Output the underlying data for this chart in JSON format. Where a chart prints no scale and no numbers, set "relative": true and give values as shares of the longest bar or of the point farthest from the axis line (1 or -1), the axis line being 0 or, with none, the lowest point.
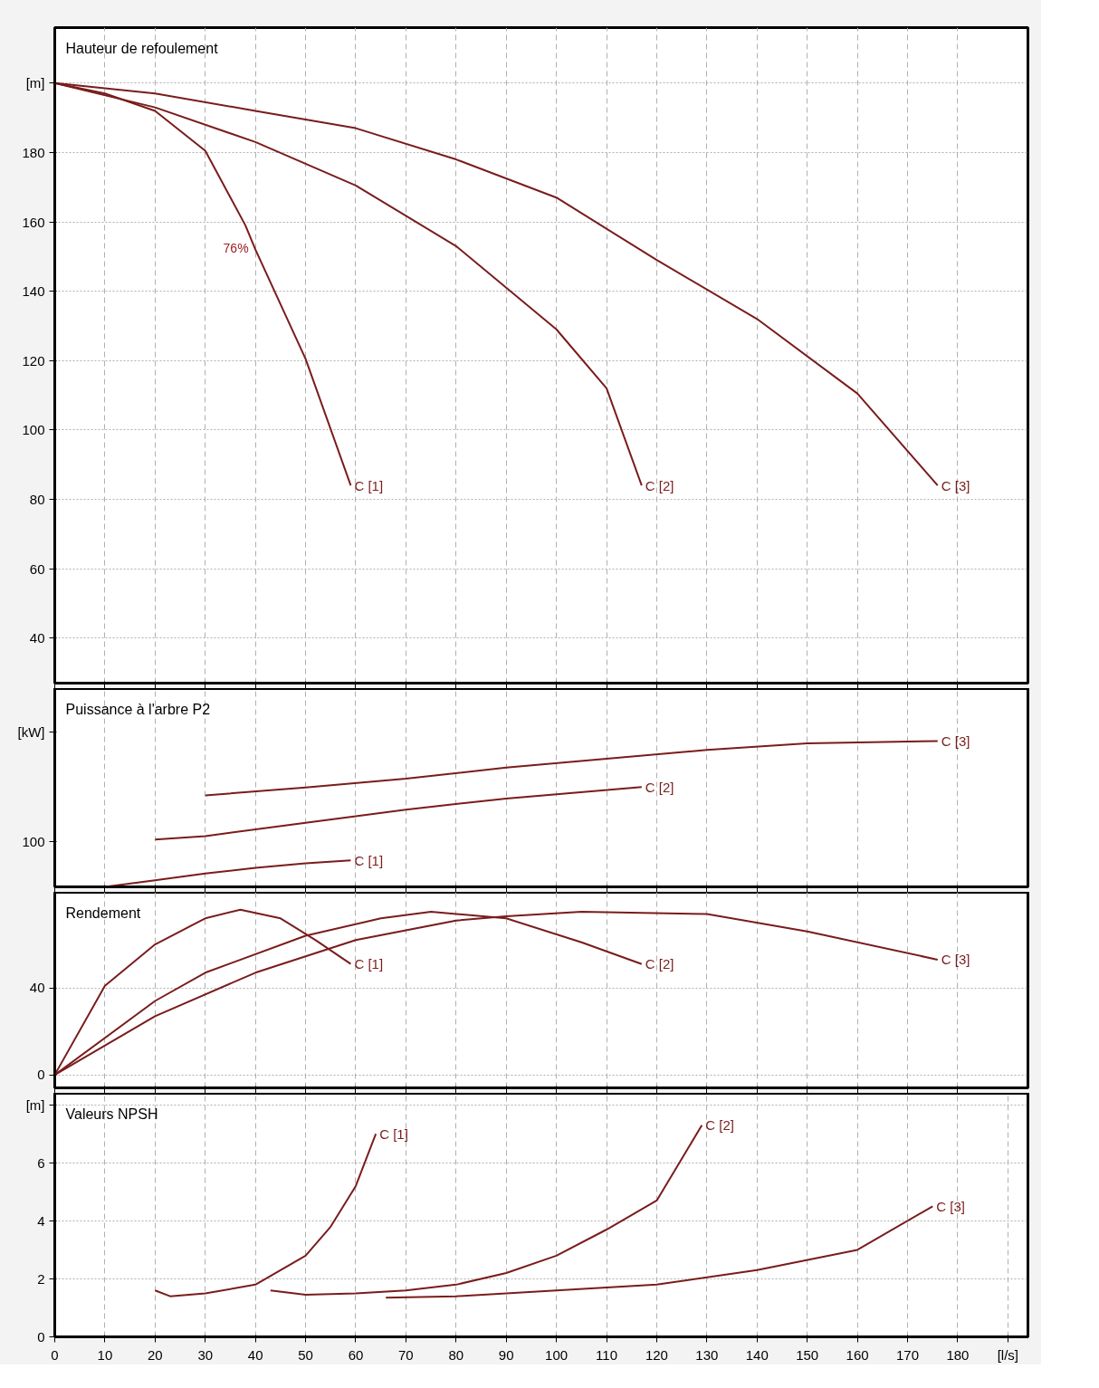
{
  "chart_data": [
    {
      "type": "line",
      "title": "Hauteur de refoulement",
      "xlim": [
        0,
        194
      ],
      "ylim": [
        27,
        216
      ],
      "xticks": [
        0,
        10,
        20,
        30,
        40,
        50,
        60,
        70,
        80,
        90,
        100,
        110,
        120,
        130,
        140,
        150,
        160,
        170,
        180
      ],
      "yticks": [
        40,
        60,
        80,
        100,
        120,
        140,
        160,
        180,
        {
          "value": 200,
          "label": "[m]"
        }
      ],
      "grid": true,
      "tick_labels": "y",
      "line_style": "solid",
      "annotations": [
        {
          "text": "76%",
          "x": 39,
          "y": 155.5
        }
      ],
      "series": [
        {
          "name": "C [1]",
          "color": "#7a1c1c",
          "x": [
            0,
            10,
            20,
            30,
            38,
            40,
            50,
            59
          ],
          "values": [
            200,
            197,
            192,
            180.5,
            159,
            152,
            120.5,
            84
          ]
        },
        {
          "name": "C [2]",
          "color": "#7a1c1c",
          "x": [
            0,
            20,
            40,
            60,
            80,
            100,
            110,
            117
          ],
          "values": [
            200,
            193,
            183,
            170.5,
            153,
            129,
            112,
            84
          ]
        },
        {
          "name": "C [3]",
          "color": "#7a1c1c",
          "x": [
            0,
            20,
            40,
            60,
            80,
            100,
            120,
            140,
            160,
            176
          ],
          "values": [
            200,
            197,
            192,
            187,
            178,
            167,
            149,
            132,
            110.5,
            84
          ]
        }
      ]
    },
    {
      "type": "line",
      "title": "Puissance à l'arbre P2",
      "relative": true,
      "xlim": [
        0,
        194
      ],
      "xticks": [
        0,
        10,
        20,
        30,
        40,
        50,
        60,
        70,
        80,
        90,
        100,
        110,
        120,
        130,
        140,
        150,
        160,
        170,
        180
      ],
      "grid": "x",
      "tick_labels": false,
      "line_style": "solid",
      "annotations": [
        "[kW]",
        "100"
      ],
      "series": [
        {
          "name": "C [1]",
          "color": "#7a1c1c",
          "x": [
            10,
            20,
            30,
            40,
            50,
            59
          ],
          "values": [
            0,
            0.045,
            0.091,
            0.13,
            0.161,
            0.182
          ]
        },
        {
          "name": "C [2]",
          "color": "#7a1c1c",
          "x": [
            20,
            30,
            50,
            70,
            90,
            117
          ],
          "values": [
            0.324,
            0.348,
            0.439,
            0.53,
            0.606,
            0.685
          ]
        },
        {
          "name": "C [3]",
          "color": "#7a1c1c",
          "x": [
            30,
            50,
            70,
            90,
            110,
            130,
            150,
            176
          ],
          "values": [
            0.627,
            0.682,
            0.742,
            0.818,
            0.879,
            0.939,
            0.985,
            1
          ]
        }
      ]
    },
    {
      "type": "line",
      "title": "Rendement",
      "xlim": [
        0,
        194
      ],
      "ylim": [
        -6,
        84
      ],
      "xticks": [
        0,
        10,
        20,
        30,
        40,
        50,
        60,
        70,
        80,
        90,
        100,
        110,
        120,
        130,
        140,
        150,
        160,
        170,
        180
      ],
      "yticks": [
        0,
        40
      ],
      "grid": true,
      "tick_labels": "y",
      "line_style": "solid",
      "series": [
        {
          "name": "C [1]",
          "color": "#7a1c1c",
          "x": [
            0,
            10,
            20,
            30,
            37,
            45,
            52,
            59
          ],
          "values": [
            0,
            41,
            60,
            72,
            76,
            72,
            62,
            51
          ]
        },
        {
          "name": "C [2]",
          "color": "#7a1c1c",
          "x": [
            0,
            20,
            30,
            50,
            65,
            75,
            90,
            105,
            117
          ],
          "values": [
            0,
            34,
            47,
            64,
            72,
            75,
            72,
            61,
            51
          ]
        },
        {
          "name": "C [3]",
          "color": "#7a1c1c",
          "x": [
            0,
            20,
            40,
            60,
            80,
            90,
            105,
            130,
            150,
            176
          ],
          "values": [
            0,
            27,
            47,
            62,
            71,
            73,
            75,
            74,
            66,
            53
          ]
        }
      ]
    },
    {
      "type": "line",
      "title": "Valeurs NPSH",
      "xlim": [
        0,
        194
      ],
      "ylim": [
        0,
        8.4
      ],
      "xticks": [
        0,
        10,
        20,
        30,
        40,
        50,
        60,
        70,
        80,
        90,
        100,
        110,
        120,
        130,
        140,
        150,
        160,
        170,
        180,
        {
          "value": 190,
          "label": "[l/s]"
        }
      ],
      "yticks": [
        0,
        2,
        4,
        6,
        {
          "value": 8,
          "label": "[m]"
        }
      ],
      "grid": true,
      "line_style": "solid",
      "series": [
        {
          "name": "C [1]",
          "color": "#7a1c1c",
          "x": [
            20,
            23,
            30,
            40,
            50,
            55,
            60,
            64
          ],
          "values": [
            1.6,
            1.4,
            1.5,
            1.8,
            2.8,
            3.8,
            5.2,
            7.0
          ]
        },
        {
          "name": "C [2]",
          "color": "#7a1c1c",
          "x": [
            43,
            50,
            60,
            70,
            80,
            90,
            100,
            110,
            120,
            129
          ],
          "values": [
            1.6,
            1.45,
            1.5,
            1.6,
            1.8,
            2.2,
            2.8,
            3.7,
            4.7,
            7.3
          ]
        },
        {
          "name": "C [3]",
          "color": "#7a1c1c",
          "x": [
            66,
            80,
            100,
            120,
            140,
            160,
            175
          ],
          "values": [
            1.35,
            1.4,
            1.6,
            1.8,
            2.3,
            3.0,
            4.5
          ]
        }
      ]
    }
  ]
}
